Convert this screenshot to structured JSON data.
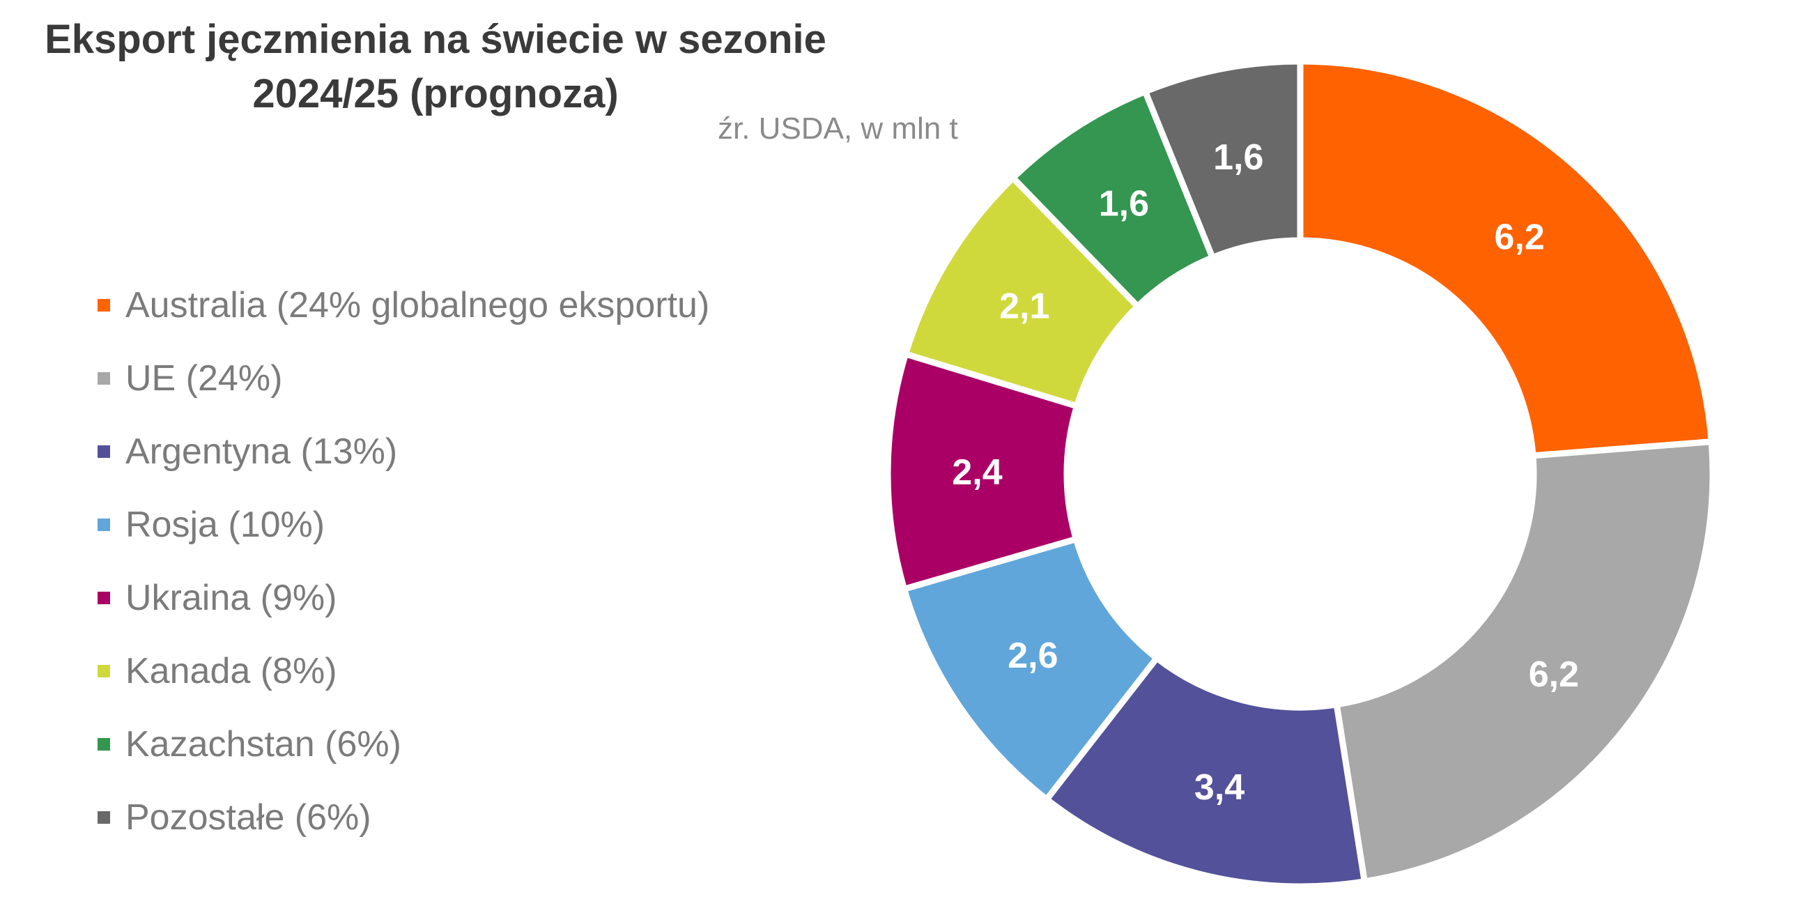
{
  "chart_data": {
    "type": "pie",
    "variant": "donut",
    "title": "Eksport jęczmienia na świecie w sezonie 2024/25 (prognoza)",
    "title_lines": [
      "Eksport jęczmienia na świecie w sezonie",
      "2024/25 (prognoza)"
    ],
    "subtitle": "źr. USDA, w mln t",
    "legend_position": "left",
    "unit": "mln t",
    "categories": [
      "Australia",
      "UE",
      "Argentyna",
      "Rosja",
      "Ukraina",
      "Kanada",
      "Kazachstan",
      "Pozostałe"
    ],
    "values": [
      6.2,
      6.2,
      3.4,
      2.6,
      2.4,
      2.1,
      1.6,
      1.6
    ],
    "data_labels": [
      "6,2",
      "6,2",
      "3,4",
      "2,6",
      "2,4",
      "2,1",
      "1,6",
      "1,6"
    ],
    "legend_labels": [
      "Australia (24% globalnego eksportu)",
      "UE (24%)",
      "Argentyna (13%)",
      "Rosja (10%)",
      "Ukraina (9%)",
      "Kanada (8%)",
      "Kazachstan (6%)",
      "Pozostałe (6%)"
    ],
    "colors": [
      "#ff6200",
      "#a8a8a8",
      "#525199",
      "#60a6da",
      "#aa0066",
      "#d0d93c",
      "#349651",
      "#696969"
    ]
  }
}
